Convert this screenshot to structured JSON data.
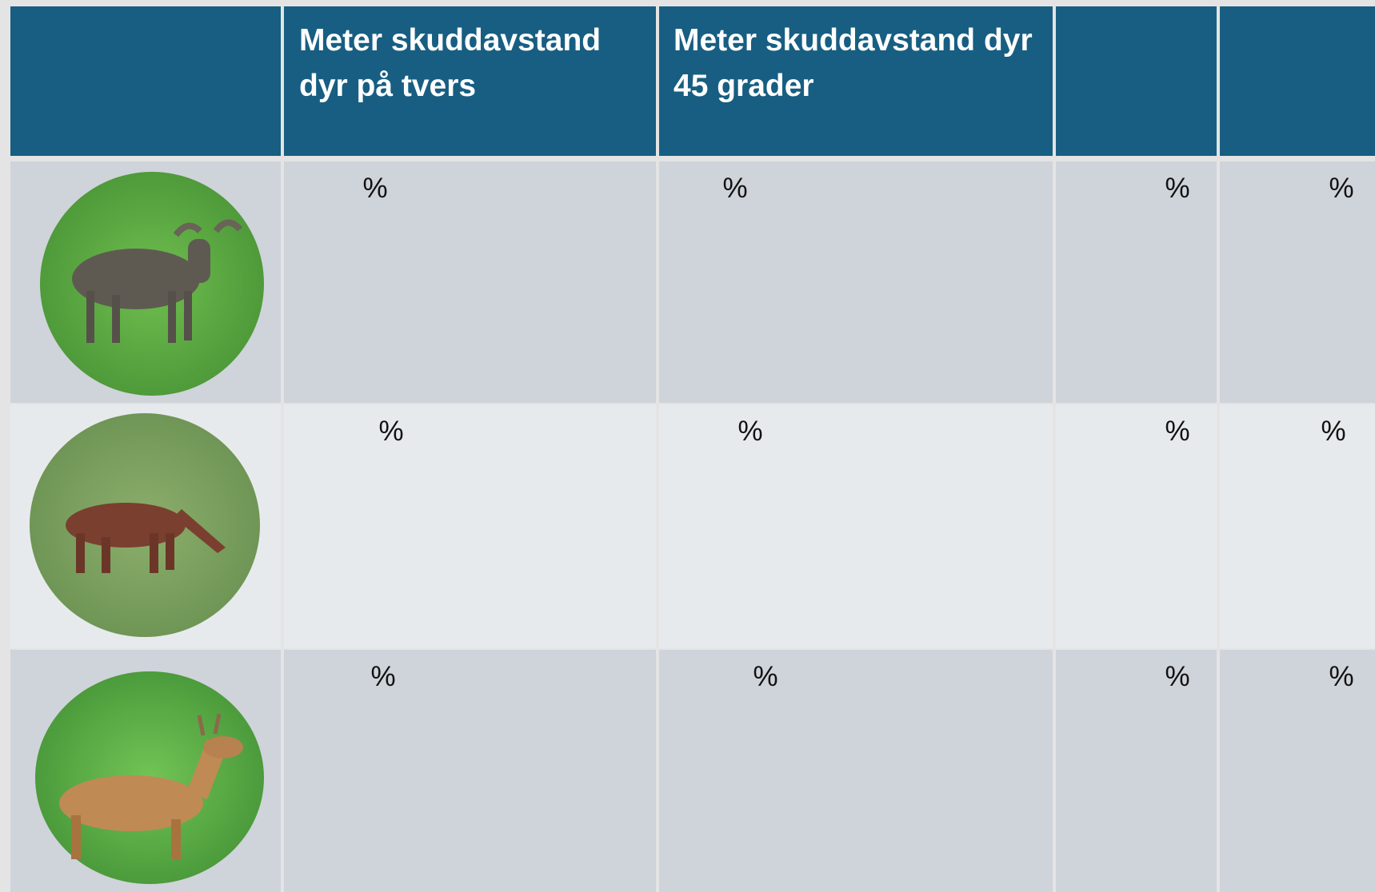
{
  "table": {
    "header": [
      "Meter skuddavstand  dyr på tvers",
      "Meter skuddavstand dyr 45 grader"
    ],
    "rows": [
      [
        "%",
        "%",
        "%",
        "%"
      ],
      [
        "%",
        "%",
        "%",
        "%"
      ],
      [
        "%",
        "%",
        "%",
        "%"
      ]
    ]
  }
}
